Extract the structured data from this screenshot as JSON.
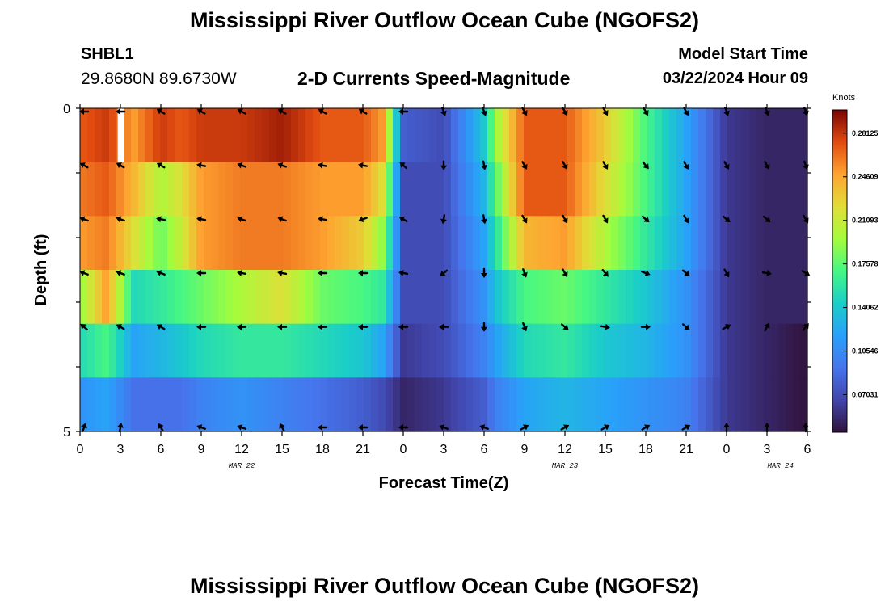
{
  "header": {
    "title": "Mississippi River Outflow Ocean Cube (NGOFS2)",
    "station_id": "SHBL1",
    "station_coords": "29.8680N  89.6730W",
    "subtitle": "2-D Currents Speed-Magnitude",
    "model_start_label": "Model Start Time",
    "model_start_value": "03/22/2024 Hour 09"
  },
  "footer": {
    "second_title": "Mississippi River Outflow Ocean Cube (NGOFS2)"
  },
  "chart_data": {
    "type": "heatmap",
    "xlabel": "Forecast Time(Z)",
    "ylabel": "Depth (ft)",
    "x_range_hours": [
      0,
      54
    ],
    "x_tick_labels": [
      "0",
      "3",
      "6",
      "9",
      "12",
      "15",
      "18",
      "21",
      "0",
      "3",
      "6",
      "9",
      "12",
      "15",
      "18",
      "21",
      "0",
      "3",
      "6"
    ],
    "date_labels": [
      {
        "label": "MAR 22",
        "hour": 12
      },
      {
        "label": "MAR 23",
        "hour": 36
      },
      {
        "label": "MAR 24",
        "hour": 52
      }
    ],
    "y_tick_labels": [
      "0",
      "5"
    ],
    "y_range_ft": [
      0,
      5
    ],
    "colorbar": {
      "title": "Knots",
      "tick_labels": [
        "0.28125",
        "0.24609",
        "0.21093",
        "0.17578",
        "0.14062",
        "0.10546",
        "0.07031"
      ],
      "tick_values": [
        0.28125,
        0.24609,
        0.21093,
        0.17578,
        0.14062,
        0.10546,
        0.07031
      ],
      "range": [
        0.04,
        0.3
      ]
    },
    "depth_layers_ft": [
      0,
      1,
      2,
      3,
      4,
      5
    ],
    "speed_key_hours": [
      0,
      2,
      4,
      6,
      7.5,
      9,
      12,
      15,
      18,
      21,
      22.5,
      24,
      27,
      30,
      31,
      33,
      36,
      39,
      42,
      45,
      48,
      51,
      54
    ],
    "speed": [
      [
        0.27,
        0.28,
        0.25,
        0.28,
        0.27,
        0.28,
        0.28,
        0.29,
        0.27,
        0.27,
        0.25,
        0.08,
        0.07,
        0.14,
        0.2,
        0.27,
        0.27,
        0.23,
        0.17,
        0.12,
        0.06,
        0.05,
        0.05
      ],
      [
        0.26,
        0.27,
        0.24,
        0.2,
        0.22,
        0.25,
        0.26,
        0.26,
        0.25,
        0.25,
        0.22,
        0.07,
        0.07,
        0.13,
        0.18,
        0.27,
        0.27,
        0.22,
        0.17,
        0.12,
        0.06,
        0.05,
        0.05
      ],
      [
        0.25,
        0.26,
        0.22,
        0.18,
        0.21,
        0.25,
        0.26,
        0.26,
        0.25,
        0.23,
        0.19,
        0.07,
        0.07,
        0.12,
        0.16,
        0.24,
        0.25,
        0.2,
        0.16,
        0.12,
        0.06,
        0.05,
        0.05
      ],
      [
        0.19,
        0.25,
        0.15,
        0.16,
        0.17,
        0.18,
        0.2,
        0.22,
        0.18,
        0.17,
        0.16,
        0.07,
        0.07,
        0.11,
        0.14,
        0.17,
        0.18,
        0.16,
        0.14,
        0.11,
        0.06,
        0.05,
        0.05
      ],
      [
        0.15,
        0.17,
        0.12,
        0.13,
        0.14,
        0.15,
        0.16,
        0.16,
        0.15,
        0.14,
        0.12,
        0.06,
        0.07,
        0.1,
        0.12,
        0.15,
        0.16,
        0.14,
        0.13,
        0.11,
        0.06,
        0.05,
        0.04
      ],
      [
        0.11,
        0.12,
        0.09,
        0.09,
        0.09,
        0.1,
        0.11,
        0.1,
        0.09,
        0.08,
        0.07,
        0.05,
        0.06,
        0.08,
        0.1,
        0.12,
        0.13,
        0.12,
        0.11,
        0.1,
        0.06,
        0.05,
        0.04
      ]
    ],
    "vectors": {
      "hours": [
        0,
        3,
        6,
        9,
        12,
        15,
        18,
        21,
        24,
        27,
        30,
        33,
        36,
        39,
        42,
        45,
        48,
        51,
        54
      ],
      "depths_ft": [
        0,
        1,
        2,
        3,
        4,
        5
      ],
      "direction_deg": [
        [
          270,
          270,
          300,
          300,
          300,
          300,
          300,
          300,
          270,
          160,
          160,
          150,
          150,
          150,
          150,
          150,
          160,
          160,
          160
        ],
        [
          300,
          300,
          300,
          280,
          290,
          290,
          280,
          280,
          310,
          180,
          170,
          150,
          150,
          150,
          140,
          150,
          150,
          150,
          160
        ],
        [
          290,
          290,
          280,
          280,
          290,
          290,
          280,
          250,
          300,
          190,
          170,
          150,
          150,
          150,
          130,
          150,
          130,
          130,
          150
        ],
        [
          290,
          290,
          290,
          270,
          280,
          280,
          270,
          270,
          280,
          230,
          180,
          160,
          150,
          140,
          110,
          130,
          150,
          100,
          120
        ],
        [
          310,
          300,
          300,
          270,
          270,
          270,
          270,
          270,
          270,
          270,
          180,
          160,
          130,
          100,
          90,
          130,
          60,
          30,
          40
        ],
        [
          20,
          10,
          330,
          290,
          290,
          330,
          270,
          270,
          270,
          290,
          290,
          60,
          60,
          60,
          60,
          60,
          0,
          0,
          0
        ]
      ]
    },
    "missing_cells": [
      {
        "hour_start": 2.8,
        "hour_end": 3.3,
        "depth_ft": 0
      }
    ]
  }
}
